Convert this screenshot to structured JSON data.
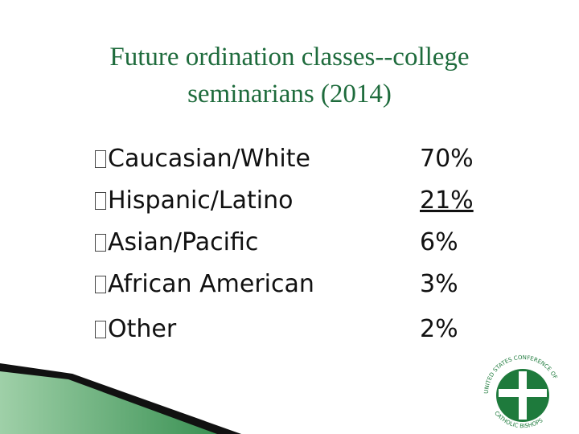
{
  "title": "Future ordination classes--college seminarians (2014)",
  "items": [
    {
      "label": "Caucasian/White",
      "value": "70%"
    },
    {
      "label": "Hispanic/Latino",
      "value": "21%"
    },
    {
      "label": "Asian/Pacific",
      "value": "6%"
    },
    {
      "label": "African American",
      "value": "3%"
    },
    {
      "label": "Other",
      "value": "2%"
    }
  ],
  "logo": {
    "top": "UNITED STATES CONFERENCE OF",
    "bottom": "CATHOLIC BISHOPS"
  }
}
